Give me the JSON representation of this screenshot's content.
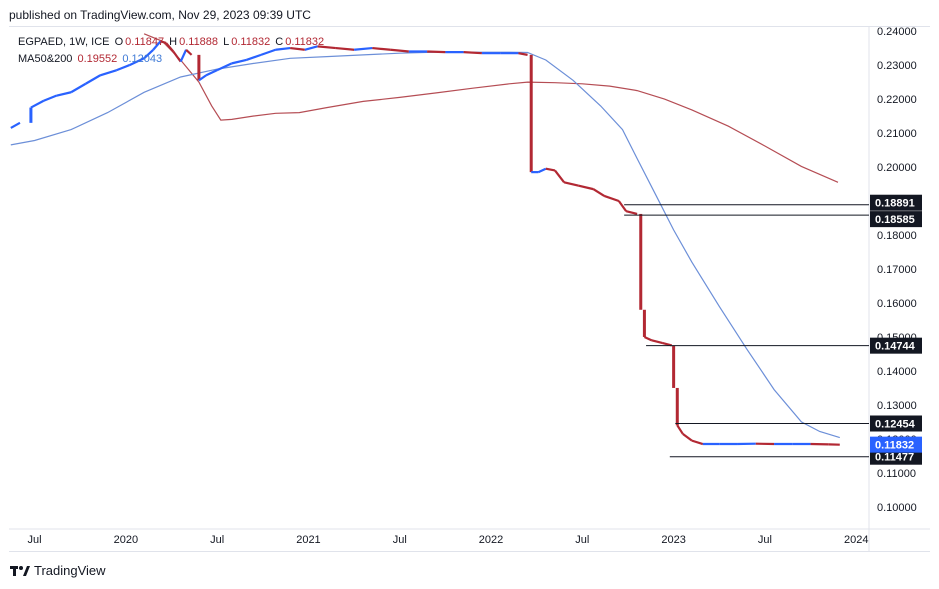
{
  "caption": "published on TradingView.com, Nov 29, 2023 09:39 UTC",
  "brand": "TradingView",
  "legend": {
    "symbol": "EGPAED, 1W, ICE",
    "open_label": "O",
    "open": "0.11847",
    "high_label": "H",
    "high": "0.11888",
    "low_label": "L",
    "low": "0.11832",
    "close_label": "C",
    "close": "0.11832",
    "ma_label": "MA50&200",
    "ma1": "0.19552",
    "ma2": "0.12043"
  },
  "chart_data": {
    "type": "line",
    "title": "EGPAED, 1W, ICE",
    "ylim": [
      0.0935,
      0.2412
    ],
    "y_ticks": [
      "0.24000",
      "0.23000",
      "0.22000",
      "0.21000",
      "0.20000",
      "0.19000",
      "0.18000",
      "0.17000",
      "0.16000",
      "0.15000",
      "0.14000",
      "0.13000",
      "0.12000",
      "0.11000",
      "0.10000"
    ],
    "x_ticks": [
      {
        "label": "Jul",
        "t": 2019.5
      },
      {
        "label": "2020",
        "t": 2020.0
      },
      {
        "label": "Jul",
        "t": 2020.5
      },
      {
        "label": "2021",
        "t": 2021.0
      },
      {
        "label": "Jul",
        "t": 2021.5
      },
      {
        "label": "2022",
        "t": 2022.0
      },
      {
        "label": "Jul",
        "t": 2022.5
      },
      {
        "label": "2023",
        "t": 2023.0
      },
      {
        "label": "Jul",
        "t": 2023.5
      },
      {
        "label": "2024",
        "t": 2024.0
      }
    ],
    "xlim": [
      2019.36,
      2024.07
    ],
    "price_series": {
      "name": "EGPAED",
      "points": [
        [
          2019.37,
          0.2115
        ],
        [
          2019.42,
          0.213
        ],
        [
          2019.48,
          0.2175
        ],
        [
          2019.55,
          0.2195
        ],
        [
          2019.62,
          0.221
        ],
        [
          2019.7,
          0.222
        ],
        [
          2019.78,
          0.2245
        ],
        [
          2019.86,
          0.227
        ],
        [
          2019.95,
          0.2285
        ],
        [
          2020.02,
          0.23
        ],
        [
          2020.1,
          0.232
        ],
        [
          2020.15,
          0.2345
        ],
        [
          2020.19,
          0.237
        ],
        [
          2020.22,
          0.2365
        ],
        [
          2020.26,
          0.234
        ],
        [
          2020.3,
          0.231
        ],
        [
          2020.33,
          0.2345
        ],
        [
          2020.36,
          0.233
        ],
        [
          2020.4,
          0.2255
        ],
        [
          2020.44,
          0.227
        ],
        [
          2020.5,
          0.2285
        ],
        [
          2020.58,
          0.2305
        ],
        [
          2020.66,
          0.2315
        ],
        [
          2020.74,
          0.233
        ],
        [
          2020.82,
          0.2345
        ],
        [
          2020.9,
          0.235
        ],
        [
          2020.98,
          0.2345
        ],
        [
          2021.05,
          0.2355
        ],
        [
          2021.15,
          0.235
        ],
        [
          2021.25,
          0.2345
        ],
        [
          2021.35,
          0.235
        ],
        [
          2021.45,
          0.2345
        ],
        [
          2021.55,
          0.234
        ],
        [
          2021.65,
          0.234
        ],
        [
          2021.75,
          0.2338
        ],
        [
          2021.85,
          0.2338
        ],
        [
          2021.95,
          0.2335
        ],
        [
          2022.05,
          0.2335
        ],
        [
          2022.15,
          0.2335
        ],
        [
          2022.2,
          0.233
        ],
        [
          2022.22,
          0.1985
        ],
        [
          2022.26,
          0.1985
        ],
        [
          2022.3,
          0.1995
        ],
        [
          2022.35,
          0.199
        ],
        [
          2022.4,
          0.1955
        ],
        [
          2022.48,
          0.1945
        ],
        [
          2022.56,
          0.1935
        ],
        [
          2022.62,
          0.1915
        ],
        [
          2022.7,
          0.19
        ],
        [
          2022.74,
          0.187
        ],
        [
          2022.8,
          0.1862
        ],
        [
          2022.82,
          0.158
        ],
        [
          2022.84,
          0.15
        ],
        [
          2022.88,
          0.149
        ],
        [
          2022.94,
          0.1482
        ],
        [
          2022.99,
          0.1475
        ],
        [
          2023.0,
          0.135
        ],
        [
          2023.02,
          0.124
        ],
        [
          2023.05,
          0.1215
        ],
        [
          2023.1,
          0.1195
        ],
        [
          2023.16,
          0.1185
        ],
        [
          2023.25,
          0.1185
        ],
        [
          2023.35,
          0.1185
        ],
        [
          2023.45,
          0.1186
        ],
        [
          2023.55,
          0.1185
        ],
        [
          2023.65,
          0.1185
        ],
        [
          2023.75,
          0.1185
        ],
        [
          2023.85,
          0.1184
        ],
        [
          2023.91,
          0.1183
        ]
      ]
    },
    "ma_series": [
      {
        "name": "MA50",
        "color": "#b54d54",
        "points": [
          [
            2020.1,
            0.2392
          ],
          [
            2020.2,
            0.237
          ],
          [
            2020.3,
            0.2315
          ],
          [
            2020.4,
            0.225
          ],
          [
            2020.47,
            0.218
          ],
          [
            2020.52,
            0.2138
          ],
          [
            2020.58,
            0.214
          ],
          [
            2020.7,
            0.215
          ],
          [
            2020.82,
            0.2158
          ],
          [
            2020.95,
            0.216
          ],
          [
            2021.1,
            0.2175
          ],
          [
            2021.3,
            0.2193
          ],
          [
            2021.5,
            0.2205
          ],
          [
            2021.7,
            0.2218
          ],
          [
            2021.9,
            0.2232
          ],
          [
            2022.1,
            0.2245
          ],
          [
            2022.2,
            0.225
          ],
          [
            2022.35,
            0.2248
          ],
          [
            2022.5,
            0.2245
          ],
          [
            2022.65,
            0.2238
          ],
          [
            2022.8,
            0.2225
          ],
          [
            2022.95,
            0.22
          ],
          [
            2023.1,
            0.2168
          ],
          [
            2023.3,
            0.212
          ],
          [
            2023.5,
            0.2062
          ],
          [
            2023.7,
            0.2002
          ],
          [
            2023.9,
            0.1955
          ]
        ]
      },
      {
        "name": "MA200",
        "color": "#6c8fd8",
        "points": [
          [
            2019.37,
            0.2065
          ],
          [
            2019.5,
            0.2078
          ],
          [
            2019.7,
            0.211
          ],
          [
            2019.9,
            0.216
          ],
          [
            2020.1,
            0.222
          ],
          [
            2020.3,
            0.2265
          ],
          [
            2020.5,
            0.2288
          ],
          [
            2020.7,
            0.2305
          ],
          [
            2020.9,
            0.232
          ],
          [
            2021.1,
            0.2325
          ],
          [
            2021.3,
            0.233
          ],
          [
            2021.5,
            0.2335
          ],
          [
            2021.7,
            0.2338
          ],
          [
            2021.9,
            0.2338
          ],
          [
            2022.1,
            0.2338
          ],
          [
            2022.2,
            0.2337
          ],
          [
            2022.3,
            0.2315
          ],
          [
            2022.45,
            0.2255
          ],
          [
            2022.6,
            0.218
          ],
          [
            2022.72,
            0.211
          ],
          [
            2022.8,
            0.2025
          ],
          [
            2022.9,
            0.192
          ],
          [
            2023.0,
            0.1815
          ],
          [
            2023.1,
            0.172
          ],
          [
            2023.25,
            0.159
          ],
          [
            2023.4,
            0.1465
          ],
          [
            2023.55,
            0.1345
          ],
          [
            2023.7,
            0.125
          ],
          [
            2023.8,
            0.1222
          ],
          [
            2023.91,
            0.1204
          ]
        ]
      }
    ],
    "horizontal_levels": [
      {
        "value": 0.18891,
        "label": "0.18891",
        "t_start": 2022.74
      },
      {
        "value": 0.18585,
        "label": "0.18585",
        "t_start": 2022.74
      },
      {
        "value": 0.14744,
        "label": "0.14744",
        "t_start": 2022.86
      },
      {
        "value": 0.12454,
        "label": "0.12454",
        "t_start": 2023.02
      },
      {
        "value": 0.11477,
        "label": "0.11477",
        "t_start": 2022.99
      }
    ],
    "last_price": {
      "value": 0.11832,
      "label": "0.11832",
      "color": "#2962ff"
    }
  }
}
